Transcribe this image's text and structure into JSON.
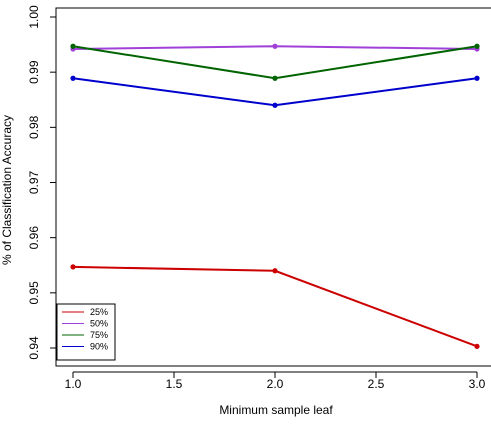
{
  "chart_data": {
    "type": "line",
    "title": "",
    "xlabel": "Minimum sample leaf",
    "ylabel": "% of Classification Accuracy",
    "x": [
      1.0,
      2.0,
      3.0
    ],
    "xlim": [
      1.0,
      3.0
    ],
    "ylim": [
      0.94,
      1.0
    ],
    "x_ticks": [
      "1.0",
      "1.5",
      "2.0",
      "2.5",
      "3.0"
    ],
    "y_ticks": [
      "0.94",
      "0.95",
      "0.96",
      "0.97",
      "0.98",
      "0.99",
      "1.00"
    ],
    "grid": false,
    "legend_position": "bottom-left",
    "series": [
      {
        "name": "25%",
        "color": "#cc0000",
        "values": [
          0.9547,
          0.954,
          0.9403
        ]
      },
      {
        "name": "50%",
        "color": "#a040d8",
        "values": [
          0.9942,
          0.9947,
          0.9942
        ]
      },
      {
        "name": "75%",
        "color": "#006400",
        "values": [
          0.9947,
          0.9889,
          0.9947
        ]
      },
      {
        "name": "90%",
        "color": "#0000cc",
        "values": [
          0.9889,
          0.984,
          0.9889
        ]
      }
    ]
  }
}
